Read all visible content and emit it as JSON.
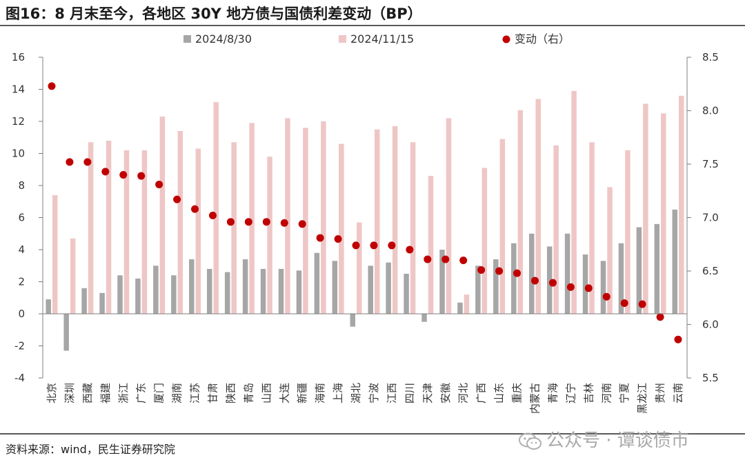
{
  "title": "图16：8 月末至今，各地区 30Y 地方债与国债利差变动（BP）",
  "source": "资料来源：wind，民生证券研究院",
  "watermark": "公众号 · 谭谈债市",
  "colors": {
    "series_a": "#a6a6a6",
    "series_b": "#efc6c6",
    "change": "#c00000"
  },
  "chart_data": {
    "type": "bar",
    "title": "图16：8 月末至今，各地区 30Y 地方债与国债利差变动（BP）",
    "legend_position": "top",
    "grid": false,
    "categories": [
      "北京",
      "深圳",
      "西藏",
      "福建",
      "浙江",
      "广东",
      "厦门",
      "湖南",
      "江苏",
      "甘肃",
      "陕西",
      "青岛",
      "山西",
      "大连",
      "新疆",
      "海南",
      "上海",
      "湖北",
      "宁波",
      "江西",
      "四川",
      "天津",
      "安徽",
      "河北",
      "广西",
      "山东",
      "重庆",
      "内蒙古",
      "青海",
      "辽宁",
      "吉林",
      "河南",
      "宁夏",
      "黑龙江",
      "贵州",
      "云南"
    ],
    "y_left": {
      "min": -4,
      "max": 16,
      "ticks": [
        -4,
        -2,
        0,
        2,
        4,
        6,
        8,
        10,
        12,
        14,
        16
      ]
    },
    "y_right": {
      "min": 5.5,
      "max": 8.5,
      "ticks": [
        "5.5",
        "6.0",
        "6.5",
        "7.0",
        "7.5",
        "8.0",
        "8.5"
      ]
    },
    "series": [
      {
        "name": "2024/8/30",
        "type": "bar",
        "axis": "left",
        "values": [
          0.9,
          -2.3,
          1.6,
          1.3,
          2.4,
          2.2,
          3.0,
          2.4,
          3.4,
          2.8,
          2.6,
          3.4,
          2.8,
          2.8,
          2.7,
          3.8,
          3.3,
          -0.8,
          3.0,
          3.2,
          2.5,
          -0.5,
          4.0,
          0.7,
          3.0,
          3.4,
          4.4,
          5.0,
          4.2,
          5.0,
          3.7,
          3.3,
          4.4,
          5.4,
          5.6,
          6.5
        ]
      },
      {
        "name": "2024/11/15",
        "type": "bar",
        "axis": "left",
        "values": [
          7.4,
          4.7,
          10.7,
          10.8,
          10.2,
          10.2,
          12.3,
          11.4,
          10.3,
          13.2,
          10.7,
          11.9,
          9.8,
          12.2,
          11.6,
          12.0,
          10.6,
          5.7,
          11.5,
          11.7,
          10.7,
          8.6,
          12.2,
          1.2,
          9.1,
          10.9,
          12.7,
          13.4,
          10.5,
          13.9,
          10.7,
          7.9,
          10.2,
          13.1,
          12.5,
          13.6
        ]
      },
      {
        "name": "变动（右）",
        "type": "scatter",
        "axis": "right",
        "values": [
          8.23,
          7.52,
          7.52,
          7.43,
          7.4,
          7.39,
          7.31,
          7.17,
          7.08,
          7.02,
          6.96,
          6.96,
          6.96,
          6.95,
          6.94,
          6.81,
          6.8,
          6.74,
          6.74,
          6.74,
          6.7,
          6.61,
          6.61,
          6.6,
          6.51,
          6.5,
          6.48,
          6.41,
          6.39,
          6.35,
          6.34,
          6.26,
          6.2,
          6.19,
          6.07,
          5.86
        ]
      }
    ]
  }
}
